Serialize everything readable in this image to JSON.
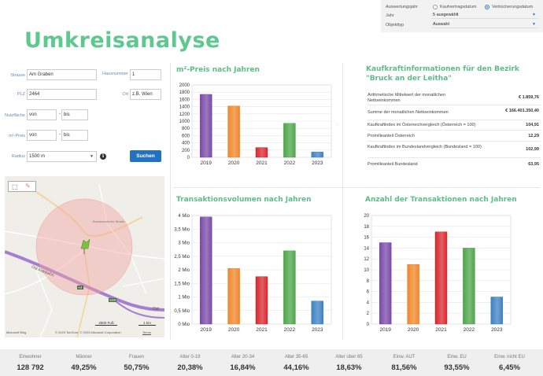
{
  "page_title": "Umkreisanalyse",
  "filter": {
    "auswertungsjahr_label": "Auswertungsjahr",
    "radio_1": "Kaufvertragsdatum",
    "radio_2": "Verbücherungsdatum",
    "jahr_label": "Jahr",
    "jahr_value": "5 ausgewählt",
    "objekttyp_label": "Objekttyp",
    "objekttyp_value": "Auswahl",
    "radio_selected": "Verbücherungsdatum"
  },
  "form": {
    "strasse_label": "Strasse",
    "strasse_value": "Am Graben",
    "hausnummer_label": "Hausnummer",
    "hausnummer_value": "1",
    "plz_label": "PLZ",
    "plz_value": "2464",
    "ort_label": "Ort",
    "ort_placeholder": "z.B. Wien",
    "nutzflaeche_label": "Nutzfläche",
    "m2preis_label": "m²-Preis",
    "von_placeholder": "von",
    "bis_placeholder": "bis",
    "dash": "-",
    "radius_label": "Radius",
    "radius_value": "1500 m",
    "search_button": "Suchen",
    "info_icon": "i"
  },
  "map": {
    "labels": [
      "Ost Autobahn",
      "A4",
      "S28",
      "Ost",
      "Bruckneudorfer Straße"
    ],
    "scale_1": "2500 Fuß",
    "scale_2": "1 km",
    "copyright": "© 2023 TomTom, © 2023 Microsoft Corporation",
    "terms": "Terms",
    "bing": "Microsoft Bing"
  },
  "sections": {
    "m2_title": "m²-Preis nach Jahren",
    "kaufkraft_title": "Kaufkraftinformationen für den Bezirk \"Bruck an der Leitha\"",
    "volumen_title": "Transaktionsvolumen nach Jahren",
    "anzahl_title": "Anzahl der Transaktionen nach Jahren"
  },
  "kaufkraft": [
    {
      "label": "Arithmetische Mittelwert der monatlichen Nettoeinkommen",
      "value": "€ 1.859,76"
    },
    {
      "label": "Summe der monatlichen Nettoeinkommen",
      "value": "€ 166.401.350,40"
    },
    {
      "label": "Kaufkraftindex im Österreichvergleich (Österreich = 100)",
      "value": "104,91"
    },
    {
      "label": "Promilleanteil Österreich",
      "value": "12,29"
    },
    {
      "label": "Kaufkraftindex im Bundeslandvergleich (Bundesland = 100)",
      "value": "102,99"
    },
    {
      "label": "Promilleanteil Bundesland",
      "value": "63,95"
    }
  ],
  "chart_data": [
    {
      "type": "bar",
      "title": "m²-Preis nach Jahren",
      "categories": [
        "2019",
        "2020",
        "2021",
        "2022",
        "2023"
      ],
      "values": [
        1740,
        1420,
        270,
        940,
        150
      ],
      "ylim": [
        0,
        2000
      ],
      "yticks": [
        "0",
        "200",
        "400",
        "600",
        "800",
        "1000",
        "1200",
        "1400",
        "1600",
        "1800",
        "2000"
      ],
      "colors": [
        "#7b4aa8",
        "#f0872a",
        "#d9282f",
        "#4ea64b",
        "#3d82c4"
      ],
      "grid": true
    },
    {
      "type": "bar",
      "title": "Transaktionsvolumen nach Jahren",
      "categories": [
        "2019",
        "2020",
        "2021",
        "2022",
        "2023"
      ],
      "values": [
        3.95,
        2.05,
        1.75,
        2.7,
        0.85
      ],
      "ylim": [
        0,
        4
      ],
      "yticks": [
        "0 Mio",
        "0,5 Mio",
        "1 Mio",
        "1,5 Mio",
        "2 Mio",
        "2,5 Mio",
        "3 Mio",
        "3,5 Mio",
        "4 Mio"
      ],
      "colors": [
        "#7b4aa8",
        "#f0872a",
        "#d9282f",
        "#4ea64b",
        "#3d82c4"
      ],
      "grid": true
    },
    {
      "type": "bar",
      "title": "Anzahl der Transaktionen nach Jahren",
      "categories": [
        "2019",
        "2020",
        "2021",
        "2022",
        "2023"
      ],
      "values": [
        15,
        11,
        17,
        14,
        5
      ],
      "ylim": [
        0,
        20
      ],
      "yticks": [
        "0",
        "2",
        "4",
        "6",
        "8",
        "10",
        "12",
        "14",
        "16",
        "18",
        "20"
      ],
      "colors": [
        "#7b4aa8",
        "#f0872a",
        "#d9282f",
        "#4ea64b",
        "#3d82c4"
      ],
      "grid": true
    }
  ],
  "stats": [
    {
      "label": "Einwohner",
      "value": "128 792"
    },
    {
      "label": "Männer",
      "value": "49,25%"
    },
    {
      "label": "Frauen",
      "value": "50,75%"
    },
    {
      "label": "Alter 0-19",
      "value": "20,38%"
    },
    {
      "label": "Alter 20-34",
      "value": "16,84%"
    },
    {
      "label": "Alter 35-65",
      "value": "44,16%"
    },
    {
      "label": "Alter über 65",
      "value": "18,63%"
    },
    {
      "label": "Einw. AUT",
      "value": "81,56%"
    },
    {
      "label": "Einw. EU",
      "value": "93,55%"
    },
    {
      "label": "Einw. nicht EU",
      "value": "6,45%"
    }
  ]
}
